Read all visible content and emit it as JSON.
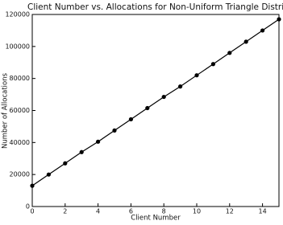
{
  "chart_data": {
    "type": "line",
    "title": "Client Number vs. Allocations for Non-Uniform Triangle Distributio",
    "x_label": "Client Number",
    "y_label": "Number of Allocations",
    "x": [
      0,
      1,
      2,
      3,
      4,
      5,
      6,
      7,
      8,
      9,
      10,
      11,
      12,
      13,
      14,
      15
    ],
    "series": [
      {
        "color": "#000000",
        "values": [
          13000,
          20000,
          27000,
          34000,
          40500,
          47500,
          54500,
          61500,
          68500,
          75000,
          82000,
          89000,
          96000,
          103000,
          110000,
          117000
        ]
      }
    ],
    "xlim": [
      0,
      15
    ],
    "xticks": [
      0,
      2,
      4,
      6,
      8,
      10,
      12,
      14
    ],
    "ylim": [
      0,
      120000
    ],
    "yticks": [
      0,
      20000,
      40000,
      60000,
      80000,
      100000,
      120000
    ],
    "grid": false
  }
}
